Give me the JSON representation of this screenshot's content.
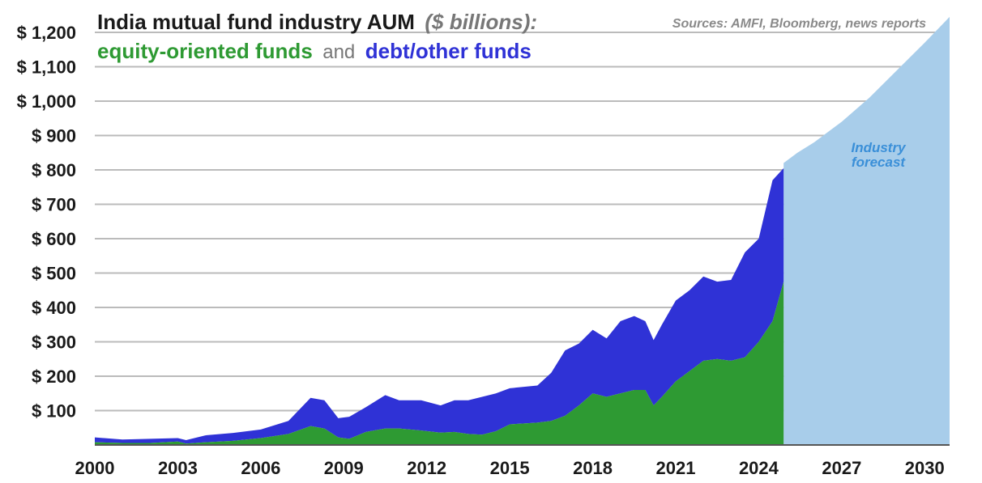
{
  "colors": {
    "equity": "#2e9a33",
    "debt": "#2f32d6",
    "forecast": "#a8cdea",
    "forecast_text": "#3a8fd8",
    "grid": "#bbbbbb"
  },
  "chart_data": {
    "type": "area",
    "title": "India mutual fund industry AUM",
    "title_unit": "($ billions):",
    "subtitle_equity": "equity-oriented funds",
    "subtitle_and": "and",
    "subtitle_debt": "debt/other funds",
    "source": "Sources: AMFI, Bloomberg, news reports",
    "annotation": [
      "Industry",
      "forecast"
    ],
    "ylim": [
      0,
      1200
    ],
    "xlim": [
      2000,
      2030.9
    ],
    "y_ticks": [
      100,
      200,
      300,
      400,
      500,
      600,
      700,
      800,
      900,
      1000,
      1100,
      1200
    ],
    "y_tick_labels": [
      "$ 100",
      "$ 200",
      "$ 300",
      "$ 400",
      "$ 500",
      "$ 600",
      "$ 700",
      "$ 800",
      "$ 900",
      "$ 1,000",
      "$ 1,100",
      "$ 1,200"
    ],
    "x_ticks": [
      2000,
      2003,
      2006,
      2009,
      2012,
      2015,
      2018,
      2021,
      2024,
      2027,
      2030
    ],
    "x_tick_labels": [
      "2000",
      "2003",
      "2006",
      "2009",
      "2012",
      "2015",
      "2018",
      "2021",
      "2024",
      "2027",
      "2030"
    ],
    "series": [
      {
        "name": "equity-oriented funds",
        "x": [
          2000,
          2001,
          2002,
          2003,
          2003.3,
          2004,
          2005,
          2006,
          2007,
          2007.8,
          2008.3,
          2008.8,
          2009.2,
          2009.8,
          2010.5,
          2011,
          2011.8,
          2012.5,
          2013,
          2013.5,
          2014,
          2014.5,
          2015,
          2016,
          2016.5,
          2017,
          2017.5,
          2018,
          2018.5,
          2019,
          2019.5,
          2019.9,
          2020.2,
          2020.5,
          2021,
          2021.5,
          2022,
          2022.5,
          2023,
          2023.5,
          2024,
          2024.5,
          2024.9
        ],
        "values": [
          8,
          6,
          6,
          10,
          4,
          8,
          12,
          20,
          32,
          55,
          48,
          22,
          18,
          38,
          48,
          48,
          42,
          36,
          38,
          32,
          30,
          40,
          60,
          65,
          70,
          85,
          115,
          150,
          140,
          150,
          160,
          160,
          115,
          140,
          185,
          215,
          245,
          250,
          245,
          255,
          300,
          360,
          475
        ]
      },
      {
        "name": "debt/other funds",
        "x": [
          2000,
          2001,
          2002,
          2003,
          2003.3,
          2004,
          2005,
          2006,
          2007,
          2007.8,
          2008.3,
          2008.8,
          2009.2,
          2009.8,
          2010.5,
          2011,
          2011.8,
          2012.5,
          2013,
          2013.5,
          2014,
          2014.5,
          2015,
          2016,
          2016.5,
          2017,
          2017.5,
          2018,
          2018.5,
          2019,
          2019.5,
          2019.9,
          2020.2,
          2020.5,
          2021,
          2021.5,
          2022,
          2022.5,
          2023,
          2023.5,
          2024,
          2024.5,
          2024.9
        ],
        "values": [
          14,
          10,
          12,
          10,
          10,
          20,
          23,
          25,
          38,
          82,
          82,
          56,
          64,
          72,
          97,
          82,
          88,
          79,
          92,
          98,
          110,
          110,
          105,
          108,
          140,
          190,
          180,
          185,
          170,
          210,
          215,
          200,
          190,
          210,
          235,
          235,
          245,
          225,
          235,
          305,
          300,
          410,
          330
        ]
      },
      {
        "name": "Industry forecast",
        "x": [
          2024.9,
          2025.4,
          2026,
          2027,
          2028,
          2029,
          2030,
          2030.9
        ],
        "values": [
          820,
          850,
          880,
          940,
          1010,
          1090,
          1170,
          1245
        ]
      }
    ],
    "grid": true
  }
}
